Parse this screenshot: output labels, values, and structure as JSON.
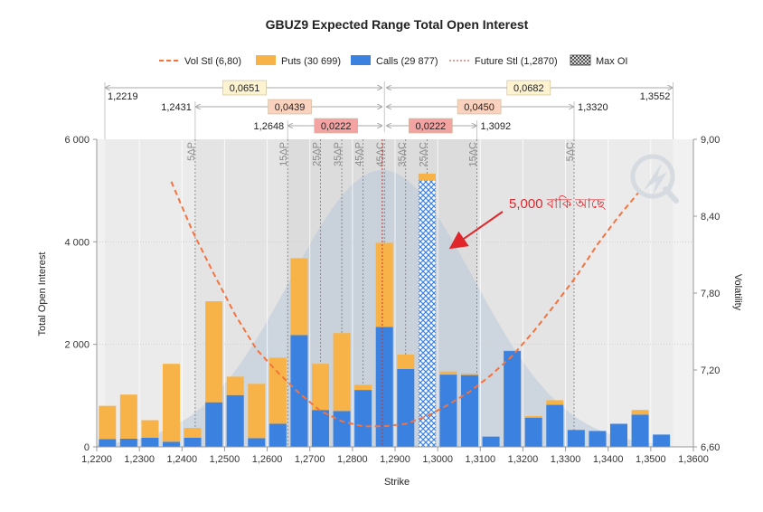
{
  "chart_data": {
    "type": "bar",
    "title": "GBUZ9 Expected Range Total Open Interest",
    "xlabel": "Strike",
    "ylabel": "Total Open Interest",
    "y2label": "Volatility",
    "xlim": [
      1.22,
      1.36
    ],
    "ylim": [
      0,
      6000
    ],
    "y2lim": [
      6.6,
      9.0
    ],
    "x_ticks": [
      "1,2200",
      "1,2300",
      "1,2400",
      "1,2500",
      "1,2600",
      "1,2700",
      "1,2800",
      "1,2900",
      "1,3000",
      "1,3100",
      "1,3200",
      "1,3300",
      "1,3400",
      "1,3500",
      "1,3600"
    ],
    "y_ticks": [
      "0",
      "2 000",
      "4 000",
      "6 000"
    ],
    "y2_ticks": [
      "6,60",
      "7,20",
      "7,80",
      "8,40",
      "9,00"
    ],
    "legend": [
      {
        "key": "vol",
        "label": "Vol Stl (6,80)",
        "color": "#f4733f"
      },
      {
        "key": "puts",
        "label": "Puts (30 699)",
        "color": "#f7b347"
      },
      {
        "key": "calls",
        "label": "Calls (29 877)",
        "color": "#3b82e0"
      },
      {
        "key": "future",
        "label": "Future Stl (1,2870)",
        "color": "#c0392b"
      },
      {
        "key": "maxoi",
        "label": "Max OI",
        "color": "#3b82e0"
      }
    ],
    "legend_position": "top",
    "strikes": [
      1.2225,
      1.2275,
      1.2325,
      1.2375,
      1.2425,
      1.2475,
      1.2525,
      1.2575,
      1.2625,
      1.2675,
      1.2725,
      1.2775,
      1.2825,
      1.2875,
      1.2925,
      1.2975,
      1.3025,
      1.3075,
      1.3125,
      1.3175,
      1.3225,
      1.3275,
      1.3325,
      1.3375,
      1.3425,
      1.3475,
      1.3525
    ],
    "calls": [
      150,
      160,
      180,
      100,
      180,
      870,
      1010,
      170,
      450,
      2180,
      720,
      700,
      1110,
      2340,
      1520,
      5200,
      1410,
      1400,
      200,
      1870,
      570,
      820,
      330,
      310,
      450,
      630,
      240
    ],
    "puts": [
      650,
      860,
      340,
      1520,
      190,
      1970,
      360,
      1060,
      1290,
      1500,
      900,
      1520,
      100,
      1640,
      280,
      130,
      60,
      30,
      0,
      10,
      30,
      90,
      0,
      0,
      0,
      90,
      0
    ],
    "max_oi_index": 15,
    "vol_smile": [
      [
        1.2375,
        8.67
      ],
      [
        1.2425,
        8.28
      ],
      [
        1.2475,
        7.95
      ],
      [
        1.2525,
        7.63
      ],
      [
        1.2575,
        7.36
      ],
      [
        1.2625,
        7.18
      ],
      [
        1.2675,
        7.02
      ],
      [
        1.2725,
        6.88
      ],
      [
        1.2775,
        6.8
      ],
      [
        1.2825,
        6.76
      ],
      [
        1.2875,
        6.76
      ],
      [
        1.2925,
        6.78
      ],
      [
        1.2975,
        6.84
      ],
      [
        1.3025,
        6.93
      ],
      [
        1.3075,
        7.03
      ],
      [
        1.3125,
        7.16
      ],
      [
        1.3175,
        7.31
      ],
      [
        1.3225,
        7.5
      ],
      [
        1.3275,
        7.71
      ],
      [
        1.3325,
        7.93
      ],
      [
        1.3375,
        8.18
      ],
      [
        1.3425,
        8.4
      ],
      [
        1.3475,
        8.6
      ]
    ],
    "distribution": {
      "center": 1.287,
      "sigma": 0.0215,
      "peak_oi": 5400
    },
    "future_stl": 1.287,
    "delta_lines": [
      {
        "label": "5ΔP",
        "x": 1.2431
      },
      {
        "label": "15ΔP",
        "x": 1.2648
      },
      {
        "label": "25ΔP",
        "x": 1.2725
      },
      {
        "label": "35ΔP",
        "x": 1.2775
      },
      {
        "label": "45ΔP",
        "x": 1.2825
      },
      {
        "label": "45ΔC",
        "x": 1.2875
      },
      {
        "label": "35ΔC",
        "x": 1.2925
      },
      {
        "label": "25ΔC",
        "x": 1.2975
      },
      {
        "label": "15ΔC",
        "x": 1.3092
      },
      {
        "label": "5ΔC",
        "x": 1.332
      }
    ],
    "ranges": [
      {
        "level": 1,
        "from": 1.2219,
        "to": 1.3552,
        "left_label": "1,2219",
        "right_label": "1,3552",
        "left_width": "0,0651",
        "right_width": "0,0682",
        "left_color": "#fdf3d0",
        "right_color": "#fdf3d0"
      },
      {
        "level": 2,
        "from": 1.2431,
        "to": 1.332,
        "left_label": "1,2431",
        "right_label": "1,3320",
        "left_width": "0,0439",
        "right_width": "0,0450",
        "left_color": "#fbd2bd",
        "right_color": "#fbd2bd"
      },
      {
        "level": 3,
        "from": 1.2648,
        "to": 1.3092,
        "left_label": "1,2648",
        "right_label": "1,3092",
        "left_width": "0,0222",
        "right_width": "0,0222",
        "left_color": "#f4a3a3",
        "right_color": "#f4a3a3"
      }
    ],
    "annotation": {
      "text": "5,000 বাকি আছে",
      "color": "#e0262b"
    },
    "grid": true
  }
}
